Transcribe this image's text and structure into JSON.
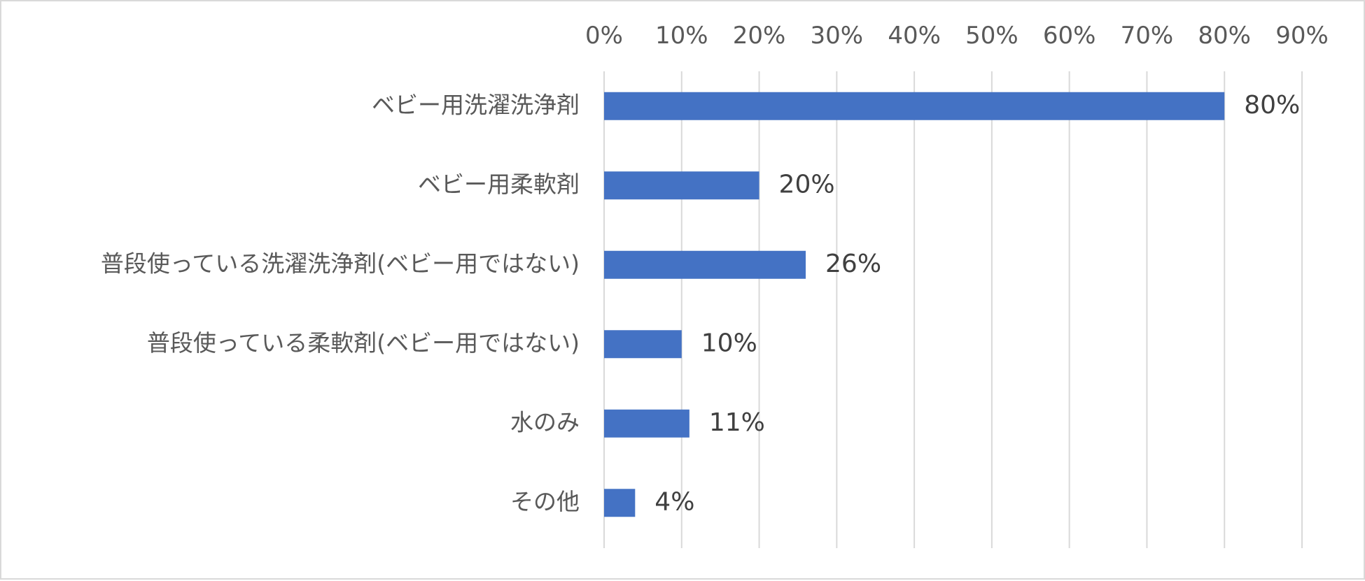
{
  "chart_data": {
    "type": "bar",
    "orientation": "horizontal",
    "title": "",
    "xlabel": "",
    "ylabel": "",
    "xlim": [
      0,
      90
    ],
    "x_ticks": [
      "0%",
      "10%",
      "20%",
      "30%",
      "40%",
      "50%",
      "60%",
      "70%",
      "80%",
      "90%"
    ],
    "x_axis_position": "top",
    "grid": true,
    "legend": "none",
    "bar_color": "#4472c4",
    "categories": [
      "ベビー用洗濯洗浄剤",
      "ベビー用柔軟剤",
      "普段使っている洗濯洗浄剤(ベビー用ではない)",
      "普段使っている柔軟剤(ベビー用ではない)",
      "水のみ",
      "その他"
    ],
    "values": [
      80,
      20,
      26,
      10,
      11,
      4
    ],
    "data_labels": [
      "80%",
      "20%",
      "26%",
      "10%",
      "11%",
      "4%"
    ]
  }
}
